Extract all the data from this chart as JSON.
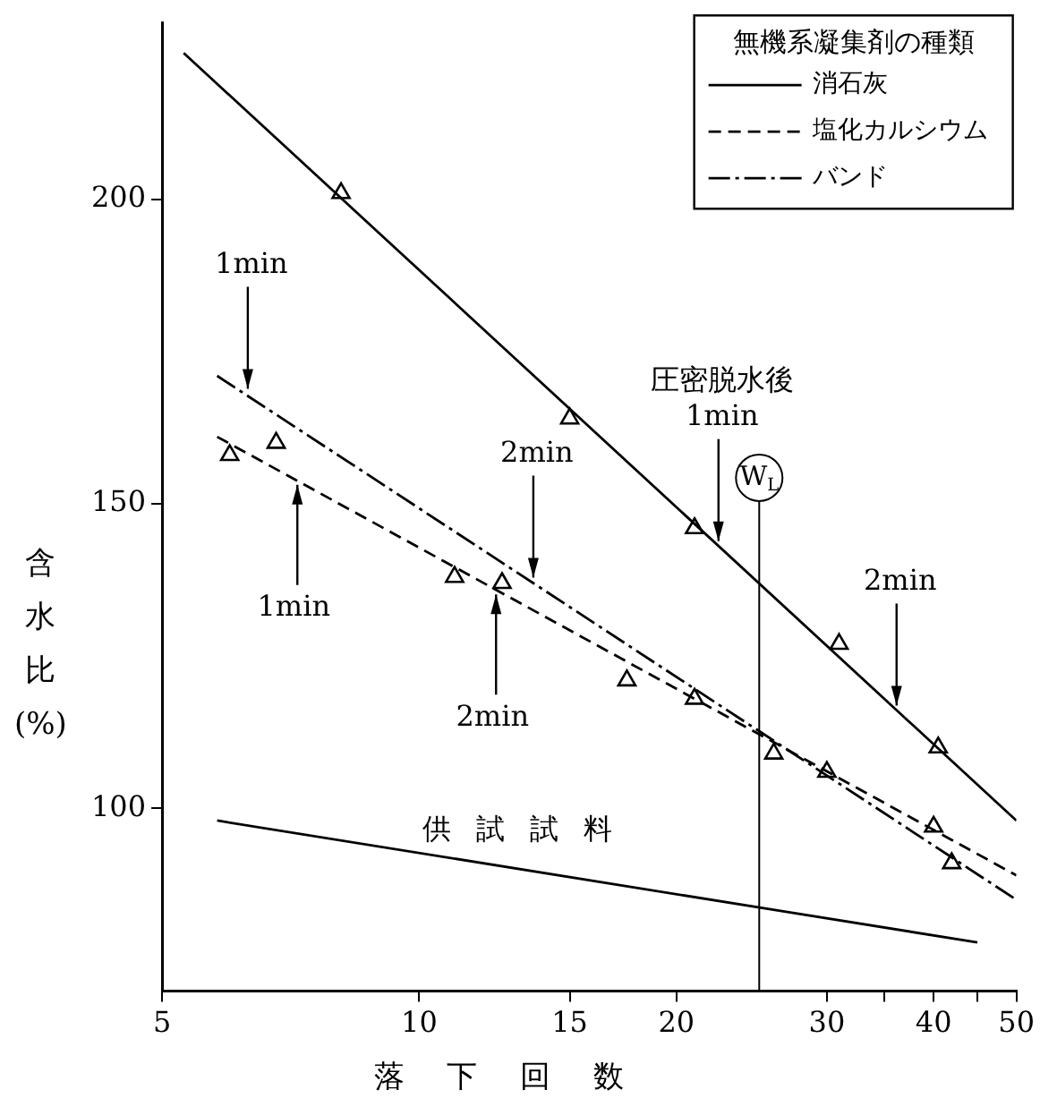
{
  "chart_data": {
    "type": "line",
    "xlabel": "落下回数",
    "ylabel": "含水比\n(%)",
    "legend_title": "無機系凝集剤の種類",
    "series": [
      {
        "name": "消石灰",
        "type": "line",
        "color": "#000000",
        "x": [
          5.3,
          50
        ],
        "values": [
          224,
          98
        ],
        "line_style": "solid",
        "marker": "none"
      },
      {
        "name": "塩化カルシウム",
        "type": "line",
        "color": "#000000",
        "x": [
          5.8,
          50
        ],
        "values": [
          161,
          89
        ],
        "line_style": "dashed",
        "marker": "none"
      },
      {
        "name": "バンド",
        "type": "line",
        "color": "#000000",
        "x": [
          5.8,
          50
        ],
        "values": [
          171,
          85
        ],
        "line_style": "dashdot",
        "marker": "none"
      },
      {
        "type": "scatter",
        "color": "#000000",
        "x": [
          8.1,
          15,
          21,
          31,
          40.5
        ],
        "values": [
          201,
          164,
          146,
          127,
          110
        ],
        "marker": "triangle"
      },
      {
        "type": "scatter",
        "color": "#000000",
        "x": [
          6,
          11,
          17.5,
          30,
          40
        ],
        "values": [
          158,
          138,
          121,
          106,
          97
        ],
        "marker": "triangle"
      },
      {
        "type": "scatter",
        "color": "#000000",
        "x": [
          6.8,
          12.5,
          21,
          26,
          42
        ],
        "values": [
          160,
          137,
          118,
          109,
          91
        ],
        "marker": "triangle"
      },
      {
        "type": "line",
        "color": "#000000",
        "x": [
          5.8,
          45
        ],
        "values": [
          98,
          78
        ],
        "line_style": "solid",
        "marker": "none"
      }
    ],
    "log": "x",
    "xlim": [
      5,
      50
    ],
    "xticks": [
      5,
      10,
      15,
      20,
      30,
      {
        "value": 35,
        "label": null
      },
      40,
      {
        "value": 45,
        "label": null
      },
      50
    ],
    "ylim": [
      70,
      229
    ],
    "yticks": [
      100,
      150,
      200
    ],
    "grid": false,
    "legend": "top right",
    "ref_lines": [
      {
        "axis": "x",
        "value": 25,
        "label": "W$_{L}$"
      }
    ],
    "annotations": [
      {
        "text": "1min",
        "x": 6.3,
        "y": 168
      },
      {
        "text": "1min",
        "x": 7.2,
        "y": 154
      },
      {
        "text": "2min",
        "x": 13.6,
        "y": 137
      },
      {
        "text": "2min",
        "x": 12.3,
        "y": 136
      },
      {
        "text": "圧密脱水後\n1min",
        "x": 22.4,
        "y": 143
      },
      {
        "text": "2min",
        "x": 36.2,
        "y": 116
      },
      "供試試料"
    ]
  }
}
